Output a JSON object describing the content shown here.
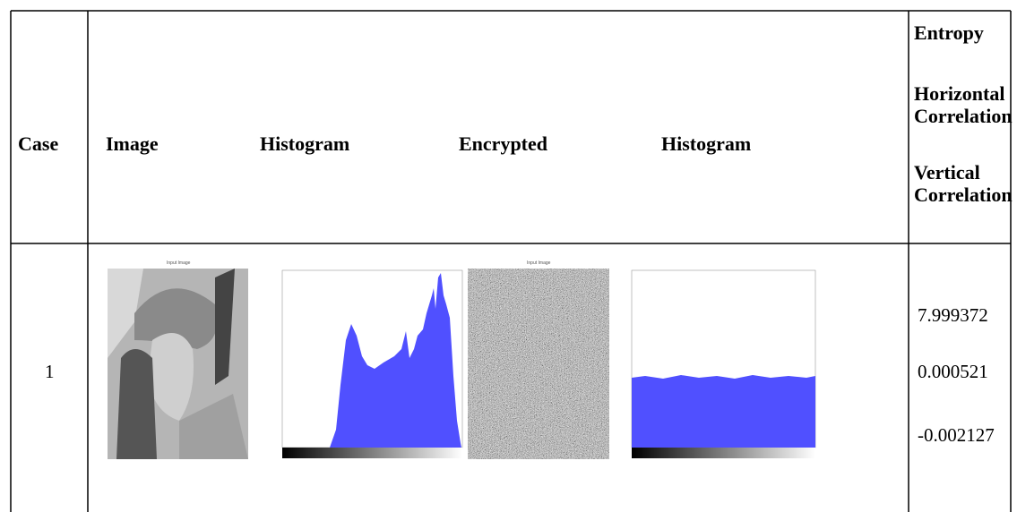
{
  "table": {
    "header": {
      "cells": [
        "Case",
        "Image",
        "Histogram",
        "Encrypted",
        "Histogram"
      ],
      "metrics": [
        "Entropy",
        "Horizontal Correlation",
        "Vertical Correlation"
      ]
    },
    "rows": [
      {
        "case": 1,
        "image_title": "Input Image",
        "encrypted_title": "Input Image",
        "metrics": [
          7.999372,
          0.000521,
          -0.002127
        ]
      }
    ]
  }
}
